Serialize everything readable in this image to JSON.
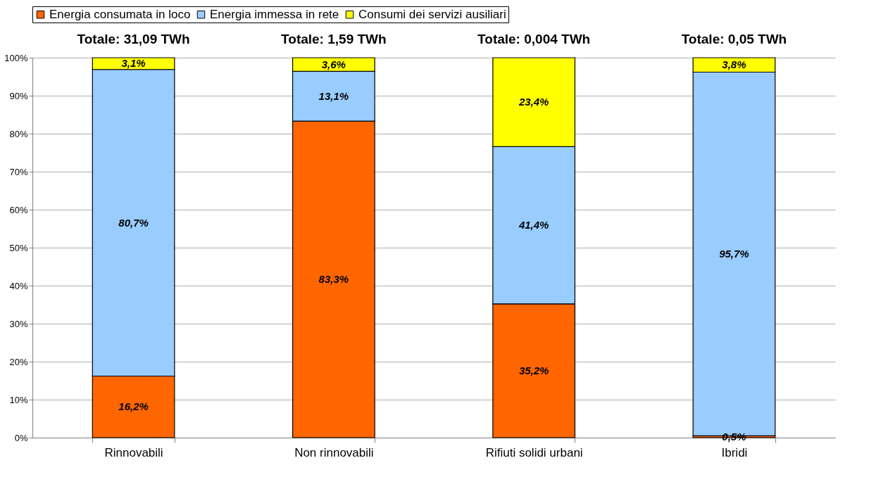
{
  "chart_data": {
    "type": "bar",
    "stacked": true,
    "categories": [
      "Rinnovabili",
      "Non rinnovabili",
      "Rifiuti solidi urbani",
      "Ibridi"
    ],
    "series": [
      {
        "name": "Energia consumata in loco",
        "color": "#ff6600",
        "values": [
          16.2,
          83.3,
          35.2,
          0.5
        ],
        "value_labels": [
          "16,2%",
          "83,3%",
          "35,2%",
          "0,5%"
        ]
      },
      {
        "name": "Energia immessa in rete",
        "color": "#99ccff",
        "values": [
          80.7,
          13.1,
          41.4,
          95.7
        ],
        "value_labels": [
          "80,7%",
          "13,1%",
          "41,4%",
          "95,7%"
        ]
      },
      {
        "name": "Consumi dei servizi ausiliari",
        "color": "#ffff00",
        "values": [
          3.1,
          3.6,
          23.4,
          3.8
        ],
        "value_labels": [
          "3,1%",
          "3,6%",
          "23,4%",
          "3,8%"
        ]
      }
    ],
    "annotations": [
      "Totale: 31,09 TWh",
      "Totale: 1,59 TWh",
      "Totale: 0,004 TWh",
      "Totale: 0,05 TWh"
    ],
    "ylim": [
      0,
      100
    ],
    "yticks": [
      {
        "value": 0,
        "label": "0%"
      },
      {
        "value": 10,
        "label": "10%"
      },
      {
        "value": 20,
        "label": "20%"
      },
      {
        "value": 30,
        "label": "30%"
      },
      {
        "value": 40,
        "label": "40%"
      },
      {
        "value": 50,
        "label": "50%"
      },
      {
        "value": 60,
        "label": "60%"
      },
      {
        "value": 70,
        "label": "70%"
      },
      {
        "value": 80,
        "label": "80%"
      },
      {
        "value": 90,
        "label": "90%"
      },
      {
        "value": 100,
        "label": "100%"
      }
    ],
    "grid": "y",
    "legend": "top"
  }
}
